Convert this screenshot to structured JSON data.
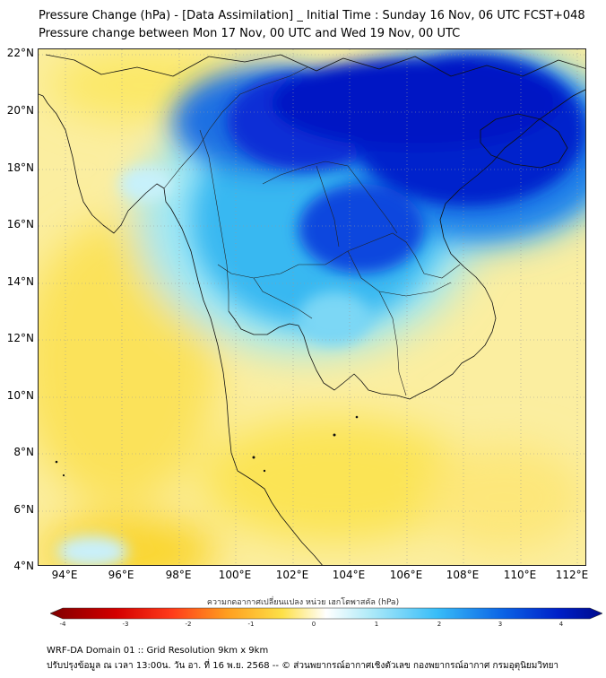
{
  "title_line1": "Pressure Change (hPa) - [Data Assimilation] _ Initial Time : Sunday 16 Nov, 06 UTC FCST+048",
  "title_line2": "Pressure change between Mon 17 Nov, 00 UTC and Wed 19 Nov, 00 UTC",
  "lat_labels": [
    "22°N",
    "20°N",
    "18°N",
    "16°N",
    "14°N",
    "12°N",
    "10°N",
    "8°N",
    "6°N",
    "4°N"
  ],
  "lon_labels": [
    "94°E",
    "96°E",
    "98°E",
    "100°E",
    "102°E",
    "104°E",
    "106°E",
    "108°E",
    "110°E",
    "112°E"
  ],
  "colorbar": {
    "title": "ความกดอากาศเปลี่ยนแปลง หน่วย เฮกโตพาสคัล (hPa)",
    "tick_labels": [
      "-4",
      "-3",
      "-2",
      "-1",
      "0",
      "1",
      "2",
      "3",
      "4"
    ],
    "min": -4,
    "max": 4
  },
  "colors": {
    "strong_negative": "#7f0000",
    "weak_negative": "#fde047",
    "neutral": "#ffffff",
    "weak_positive": "#38bdf8",
    "strong_positive": "#000a8c",
    "coastline": "#111111"
  },
  "footer_line1": "WRF-DA Domain 01 :: Grid Resolution 9km x 9km",
  "footer_line2": "ปรับปรุงข้อมูล ณ เวลา 13:00น. วัน อา. ที่ 16 พ.ย. 2568 -- © ส่วนพยากรณ์อากาศเชิงตัวเลข กองพยากรณ์อากาศ กรมอุตุนิยมวิทยา"
}
